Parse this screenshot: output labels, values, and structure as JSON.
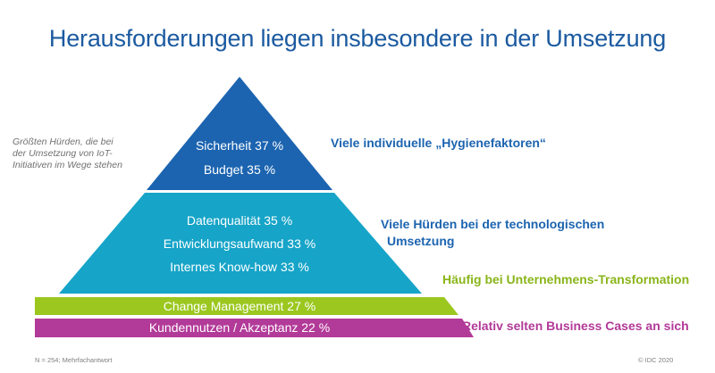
{
  "title": "Herausforderungen liegen insbesondere in der Umsetzung",
  "side_note": "Größten Hürden, die bei der Umsetzung von IoT-Initiativen im Wege stehen",
  "pyramid": {
    "top": {
      "items": [
        "Sicherheit 37 %",
        "Budget 35 %"
      ],
      "label": "Viele individuelle „Hygienefaktoren“",
      "color": "#1c64b0",
      "label_color": "#1c64b0"
    },
    "middle": {
      "items": [
        "Datenqualität 35 %",
        "Entwicklungsaufwand 33 %",
        "Internes Know-how 33 %"
      ],
      "label_line1": "Viele Hürden bei der technologischen",
      "label_line2": "Umsetzung",
      "color": "#16a4c8",
      "label_color": "#1c64b0"
    },
    "band1": {
      "item": "Change Management 27 %",
      "label": "Häufig bei Unternehmens-Transformation",
      "color": "#9bc71f",
      "label_color": "#8ab51a"
    },
    "band2": {
      "item": "Kundennutzen / Akzeptanz 22 %",
      "label": "Relativ selten Business Cases an sich",
      "color": "#b23a98",
      "label_color": "#b23a98"
    }
  },
  "footer": {
    "left": "N = 254; Mehrfachantwort",
    "right": "© IDC 2020"
  }
}
